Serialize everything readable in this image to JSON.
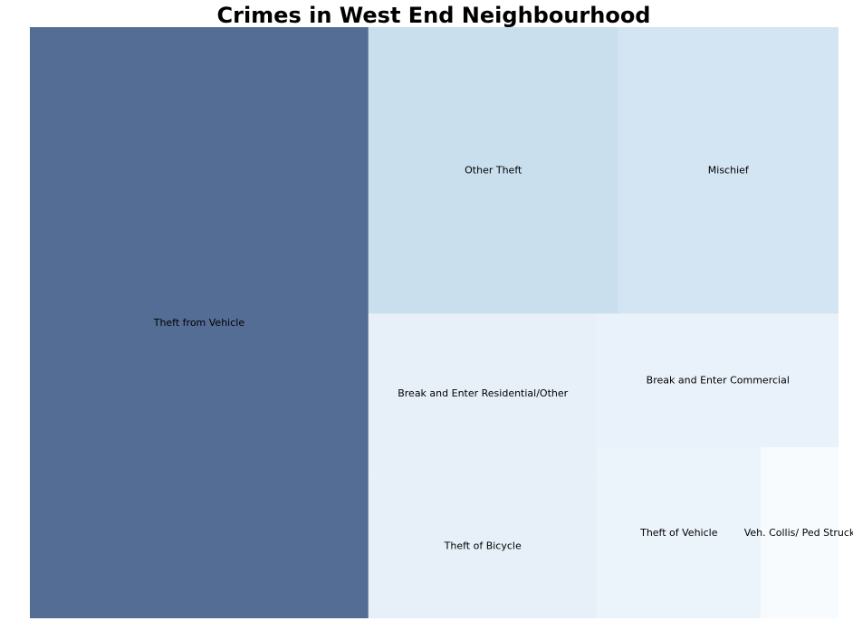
{
  "chart_data": {
    "type": "treemap",
    "title": "Crimes in West End Neighbourhood",
    "categories": [
      "Theft from Vehicle",
      "Other Theft",
      "Mischief",
      "Break and Enter Residential/Other",
      "Theft of Bicycle",
      "Break and Enter Commercial",
      "Theft of Vehicle",
      "Veh. Collis/ Ped Struck"
    ],
    "values": [
      2434,
      870,
      768,
      444,
      404,
      392,
      340,
      162
    ],
    "colors": [
      "#536d95",
      "#c9dfee",
      "#d3e4f2",
      "#e7f0f9",
      "#e7f0f9",
      "#e9f1fa",
      "#ebf3fb",
      "#f7fbfe"
    ],
    "axes_visible": false,
    "legend": "none"
  }
}
